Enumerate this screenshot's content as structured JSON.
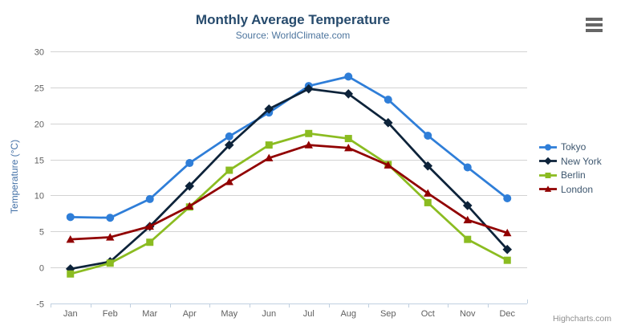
{
  "chart_data": {
    "type": "line",
    "title": "Monthly Average Temperature",
    "subtitle": "Source: WorldClimate.com",
    "categories": [
      "Jan",
      "Feb",
      "Mar",
      "Apr",
      "May",
      "Jun",
      "Jul",
      "Aug",
      "Sep",
      "Oct",
      "Nov",
      "Dec"
    ],
    "xlabel": "",
    "ylabel": "Temperature (°C)",
    "ylim": [
      -5,
      30
    ],
    "ytick_interval": 5,
    "grid": true,
    "legend_position": "right",
    "series": [
      {
        "name": "Tokyo",
        "color": "#2f7ed8",
        "marker": "circle",
        "values": [
          7.0,
          6.9,
          9.5,
          14.5,
          18.2,
          21.5,
          25.2,
          26.5,
          23.3,
          18.3,
          13.9,
          9.6
        ]
      },
      {
        "name": "New York",
        "color": "#0d233a",
        "marker": "diamond",
        "values": [
          -0.2,
          0.8,
          5.7,
          11.3,
          17.0,
          22.0,
          24.8,
          24.1,
          20.1,
          14.1,
          8.6,
          2.5
        ]
      },
      {
        "name": "Berlin",
        "color": "#8bbc21",
        "marker": "square",
        "values": [
          -0.9,
          0.6,
          3.5,
          8.4,
          13.5,
          17.0,
          18.6,
          17.9,
          14.3,
          9.0,
          3.9,
          1.0
        ]
      },
      {
        "name": "London",
        "color": "#910000",
        "marker": "triangle",
        "values": [
          3.9,
          4.2,
          5.7,
          8.5,
          11.9,
          15.2,
          17.0,
          16.6,
          14.2,
          10.3,
          6.6,
          4.8
        ]
      }
    ]
  },
  "ui": {
    "credit": "Highcharts.com",
    "export_icon": "hamburger-menu-icon"
  },
  "colors": {
    "title": "#274b6d",
    "subtitle": "#4d759e",
    "axis_title": "#4572a7",
    "tick_label": "#606060",
    "legend_text": "#3e576f",
    "grid_line": "#d3d3d3",
    "axis_line": "#c0d0e0",
    "credit": "#8f8f8f",
    "menu_icon": "#666666",
    "background": "#ffffff"
  }
}
